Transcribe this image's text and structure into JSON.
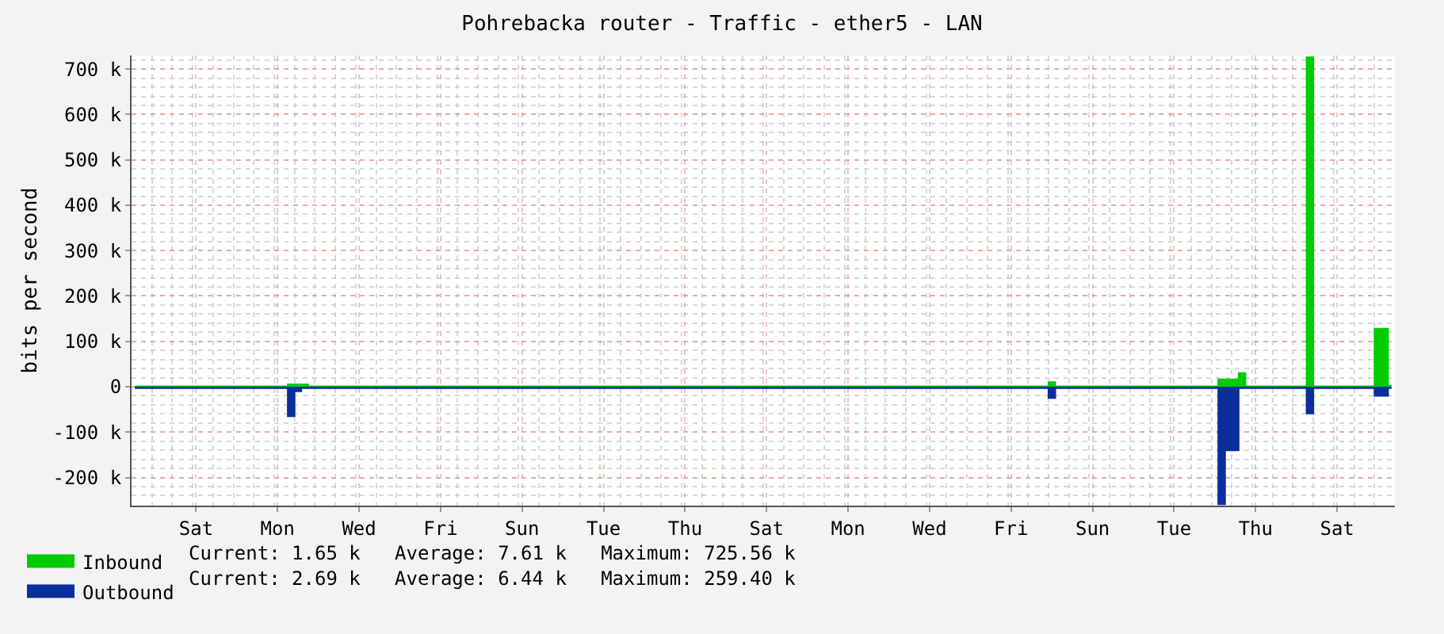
{
  "chart_data": {
    "type": "area",
    "title": "Pohrebacka router - Traffic - ether5 - LAN",
    "ylabel": "bits per second",
    "categories": [
      null,
      null,
      null,
      null,
      null,
      null,
      null,
      null,
      null,
      "Sat",
      null,
      null,
      null,
      null,
      null,
      null,
      null,
      null,
      null,
      null,
      null,
      "Mon",
      null,
      null,
      null,
      null,
      null,
      null,
      null,
      null,
      null,
      null,
      null,
      "Wed",
      null,
      null,
      null,
      null,
      null,
      null,
      null,
      null,
      null,
      null,
      null,
      "Fri",
      null,
      null,
      null,
      null,
      null,
      null,
      null,
      null,
      null,
      null,
      null,
      "Sun",
      null,
      null,
      null,
      null,
      null,
      null,
      null,
      null,
      null,
      null,
      null,
      "Tue",
      null,
      null,
      null,
      null,
      null,
      null,
      null,
      null,
      null,
      null,
      null,
      "Thu",
      null,
      null,
      null,
      null,
      null,
      null,
      null,
      null,
      null,
      null,
      null,
      "Sat",
      null,
      null,
      null,
      null,
      null,
      null,
      null,
      null,
      null,
      null,
      null,
      "Mon",
      null,
      null,
      null,
      null,
      null,
      null,
      null,
      null,
      null,
      null,
      null,
      "Wed",
      null,
      null,
      null,
      null,
      null,
      null,
      null,
      null,
      null,
      null,
      null,
      "Fri",
      null,
      null,
      null,
      null,
      null,
      null,
      null,
      null,
      null,
      null,
      null,
      "Sun",
      null,
      null,
      null,
      null,
      null,
      null,
      null,
      null,
      null,
      null,
      null,
      "Tue",
      null,
      null,
      null,
      null,
      null,
      null,
      null,
      null,
      null,
      null,
      null,
      "Thu",
      null,
      null,
      null,
      null,
      null,
      null,
      null,
      null,
      null,
      null,
      null,
      "Sat",
      null,
      null,
      null,
      null,
      null,
      null,
      null,
      null
    ],
    "series": [
      {
        "name": "Inbound",
        "color": "#00cc00",
        "values": [
          1000,
          1000,
          1000,
          1000,
          1000,
          1000,
          1000,
          1000,
          1000,
          1000,
          1000,
          1000,
          1000,
          1000,
          1000,
          1000,
          1000,
          1000,
          1000,
          1000,
          1000,
          1000,
          1000,
          5000,
          5000,
          5000,
          1000,
          1000,
          1000,
          1000,
          1000,
          1000,
          1000,
          1000,
          1000,
          1000,
          1000,
          1000,
          1000,
          1000,
          1000,
          1000,
          1000,
          1000,
          1000,
          1000,
          1000,
          1000,
          1000,
          1000,
          1000,
          1000,
          1000,
          1000,
          1000,
          1000,
          1000,
          1000,
          1000,
          1000,
          1000,
          1000,
          1000,
          1000,
          1000,
          1000,
          1000,
          1000,
          1000,
          1000,
          1000,
          1000,
          1000,
          1000,
          1000,
          1000,
          1000,
          1000,
          1000,
          1000,
          1000,
          1000,
          1000,
          1000,
          1000,
          1000,
          1000,
          1000,
          1000,
          1000,
          1000,
          1000,
          1000,
          1000,
          1000,
          1000,
          1000,
          1000,
          1000,
          1000,
          1000,
          1000,
          1000,
          1000,
          1000,
          1000,
          1000,
          1000,
          1000,
          1000,
          1000,
          1000,
          1000,
          1000,
          1000,
          1000,
          1000,
          1000,
          1000,
          1000,
          1000,
          1000,
          1000,
          1000,
          1000,
          1000,
          1000,
          1000,
          1000,
          1000,
          1000,
          1000,
          1000,
          1000,
          1000,
          10000,
          1000,
          1000,
          1000,
          1000,
          1000,
          1000,
          1000,
          1000,
          1000,
          1000,
          1000,
          1000,
          1000,
          1000,
          1000,
          1000,
          1000,
          1000,
          1000,
          1000,
          1000,
          1000,
          1000,
          1000,
          16000,
          16000,
          16000,
          30000,
          1000,
          1000,
          1000,
          1000,
          1000,
          1000,
          1000,
          1000,
          1000,
          726000,
          1000,
          1000,
          1000,
          1000,
          1000,
          1000,
          1000,
          1000,
          1000,
          128000,
          128000,
          2000
        ]
      },
      {
        "name": "Outbound",
        "color": "#0a2f9c",
        "values": [
          -3000,
          -3000,
          -3000,
          -3000,
          -3000,
          -3000,
          -3000,
          -3000,
          -3000,
          -3000,
          -3000,
          -3000,
          -3000,
          -3000,
          -3000,
          -3000,
          -3000,
          -3000,
          -3000,
          -3000,
          -3000,
          -3000,
          -3000,
          -65000,
          -10000,
          -3000,
          -3000,
          -3000,
          -3000,
          -3000,
          -3000,
          -3000,
          -3000,
          -3000,
          -3000,
          -3000,
          -3000,
          -3000,
          -3000,
          -3000,
          -3000,
          -3000,
          -3000,
          -3000,
          -3000,
          -3000,
          -3000,
          -3000,
          -3000,
          -3000,
          -3000,
          -3000,
          -3000,
          -3000,
          -3000,
          -3000,
          -3000,
          -3000,
          -3000,
          -3000,
          -3000,
          -3000,
          -3000,
          -3000,
          -3000,
          -3000,
          -3000,
          -3000,
          -3000,
          -3000,
          -3000,
          -3000,
          -3000,
          -3000,
          -3000,
          -3000,
          -3000,
          -3000,
          -3000,
          -3000,
          -3000,
          -3000,
          -3000,
          -3000,
          -3000,
          -3000,
          -3000,
          -3000,
          -3000,
          -3000,
          -3000,
          -3000,
          -3000,
          -3000,
          -3000,
          -3000,
          -3000,
          -3000,
          -3000,
          -3000,
          -3000,
          -3000,
          -3000,
          -3000,
          -3000,
          -3000,
          -3000,
          -3000,
          -3000,
          -3000,
          -3000,
          -3000,
          -3000,
          -3000,
          -3000,
          -3000,
          -3000,
          -3000,
          -3000,
          -3000,
          -3000,
          -3000,
          -3000,
          -3000,
          -3000,
          -3000,
          -3000,
          -3000,
          -3000,
          -3000,
          -3000,
          -3000,
          -3000,
          -3000,
          -3000,
          -25000,
          -3000,
          -3000,
          -3000,
          -3000,
          -3000,
          -3000,
          -3000,
          -3000,
          -3000,
          -3000,
          -3000,
          -3000,
          -3000,
          -3000,
          -3000,
          -3000,
          -3000,
          -3000,
          -3000,
          -3000,
          -3000,
          -3000,
          -3000,
          -3000,
          -259000,
          -140000,
          -140000,
          -3000,
          -3000,
          -3000,
          -3000,
          -3000,
          -3000,
          -3000,
          -3000,
          -3000,
          -3000,
          -59000,
          -3000,
          -3000,
          -3000,
          -3000,
          -3000,
          -3000,
          -3000,
          -3000,
          -3000,
          -20000,
          -20000,
          -3000
        ]
      }
    ],
    "ylim": [
      -262000,
      730000
    ],
    "yticks": [
      {
        "value": -200000,
        "label": "-200 k"
      },
      {
        "value": -100000,
        "label": "-100 k"
      },
      0,
      {
        "value": 100000,
        "label": "100 k"
      },
      {
        "value": 200000,
        "label": "200 k"
      },
      {
        "value": 300000,
        "label": "300 k"
      },
      {
        "value": 400000,
        "label": "400 k"
      },
      {
        "value": 500000,
        "label": "500 k"
      },
      {
        "value": 600000,
        "label": "600 k"
      },
      {
        "value": 700000,
        "label": "700 k"
      }
    ],
    "grid": true,
    "legend": "bottom left",
    "annotations": [
      "Current: 1.65 k   Average: 7.61 k   Maximum: 725.56 k",
      "Current: 2.69 k   Average: 6.44 k   Maximum: 259.40 k"
    ]
  }
}
